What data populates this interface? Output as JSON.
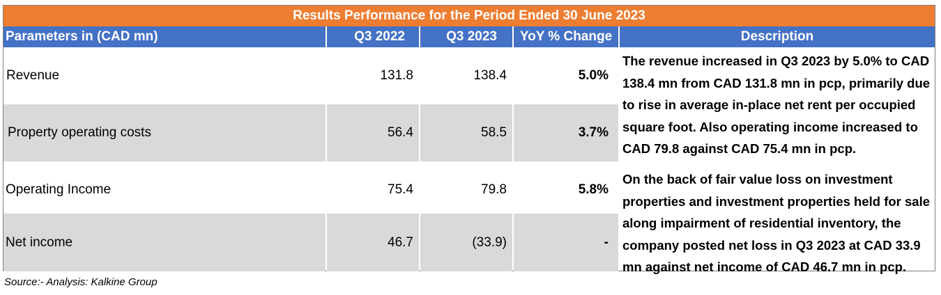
{
  "title": "Results Performance for the Period Ended 30 June 2023",
  "headers": {
    "param": "Parameters in (CAD mn)",
    "q3_2022": "Q3 2022",
    "q3_2023": "Q3 2023",
    "yoy": "YoY % Change",
    "description": "Description"
  },
  "rows": [
    {
      "label": " Revenue",
      "q3_2022": "131.8",
      "q3_2023": "138.4",
      "yoy": "5.0%"
    },
    {
      "label": " Property operating costs",
      "q3_2022": "56.4",
      "q3_2023": "58.5",
      "yoy": "3.7%"
    },
    {
      "label": "Operating Income",
      "q3_2022": "75.4",
      "q3_2023": "79.8",
      "yoy": "5.8%"
    },
    {
      "label": "Net income",
      "q3_2022": "46.7",
      "q3_2023": "(33.9)",
      "yoy": "-"
    }
  ],
  "descriptions": [
    "The revenue increased in Q3 2023 by 5.0% to CAD 138.4 mn from CAD 131.8 mn in pcp, primarily due to rise in average in-place net rent per occupied square foot.  Also operating income increased to CAD 79.8  against CAD 75.4 mn in pcp.",
    "On the back of fair value loss on investment properties and investment properties held for sale along impairment of residential inventory, the company posted net loss in Q3 2023 at CAD 33.9 mn against net income of CAD 46.7 mn in pcp."
  ],
  "source": "Source:- Analysis: Kalkine Group",
  "colors": {
    "title_bg": "#ed7d31",
    "header_bg": "#4472c4",
    "alt_row_bg": "#d9d9d9"
  }
}
